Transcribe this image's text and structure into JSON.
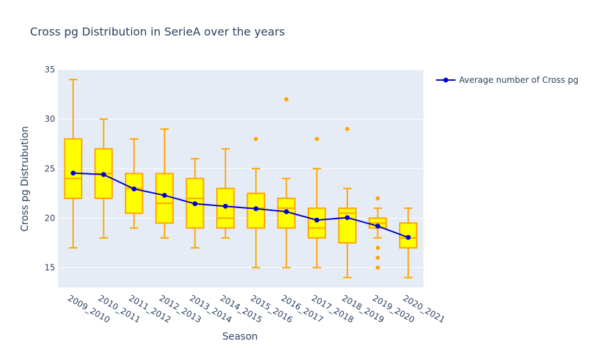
{
  "chart_data": {
    "type": "box",
    "title": "Cross pg Distribution in SerieA over the years",
    "xlabel": "Season",
    "ylabel": "Cross pg Distrubution",
    "ylim": [
      13,
      35
    ],
    "yticks": [
      15,
      20,
      25,
      30,
      35
    ],
    "grid": true,
    "legend_position": "top-right",
    "colors": {
      "plot_bg": "#e5ecf6",
      "box_fill": "#ffff00",
      "box_line": "#ffa500",
      "avg_line": "#0000cd",
      "text": "#2a3f5f"
    },
    "categories": [
      "2009_2010",
      "2010_2011",
      "2011_2012",
      "2012_2013",
      "2013_2014",
      "2014_2015",
      "2015_2016",
      "2016_2017",
      "2017_2018",
      "2018_2019",
      "2019_2020",
      "2020_2021"
    ],
    "boxes": [
      {
        "min": 17,
        "q1": 22,
        "median": 24,
        "q3": 28,
        "max": 34,
        "outliers": []
      },
      {
        "min": 18,
        "q1": 22,
        "median": 24.5,
        "q3": 27,
        "max": 30,
        "outliers": []
      },
      {
        "min": 19,
        "q1": 20.5,
        "median": 23,
        "q3": 24.5,
        "max": 28,
        "outliers": []
      },
      {
        "min": 18,
        "q1": 19.5,
        "median": 21.5,
        "q3": 24.5,
        "max": 29,
        "outliers": []
      },
      {
        "min": 17,
        "q1": 19,
        "median": 22,
        "q3": 24,
        "max": 26,
        "outliers": []
      },
      {
        "min": 18,
        "q1": 19,
        "median": 20,
        "q3": 23,
        "max": 27,
        "outliers": []
      },
      {
        "min": 15,
        "q1": 19,
        "median": 21,
        "q3": 22.5,
        "max": 25,
        "outliers": [
          28
        ]
      },
      {
        "min": 15,
        "q1": 19,
        "median": 21,
        "q3": 22,
        "max": 24,
        "outliers": [
          32
        ]
      },
      {
        "min": 15,
        "q1": 18,
        "median": 19,
        "q3": 21,
        "max": 25,
        "outliers": [
          28
        ]
      },
      {
        "min": 14,
        "q1": 17.5,
        "median": 20.5,
        "q3": 21,
        "max": 23,
        "outliers": [
          29
        ]
      },
      {
        "min": 18,
        "q1": 19,
        "median": 19.5,
        "q3": 20,
        "max": 21,
        "outliers": [
          22,
          17,
          16,
          15
        ]
      },
      {
        "min": 14,
        "q1": 17,
        "median": 18,
        "q3": 19.5,
        "max": 21,
        "outliers": []
      }
    ],
    "series": [
      {
        "name": "Average number of Cross pg",
        "type": "line",
        "values": [
          24.55,
          24.4,
          22.95,
          22.3,
          21.45,
          21.2,
          20.95,
          20.65,
          19.8,
          20.05,
          19.2,
          18.05
        ]
      }
    ]
  }
}
